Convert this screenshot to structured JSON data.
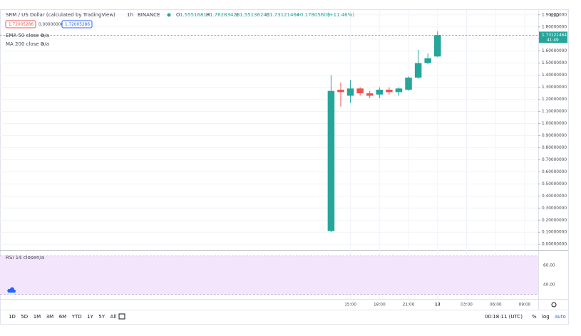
{
  "header": {
    "symbol": "SRM / US Dollar (calculated by TradingView)",
    "interval": "1h",
    "exchange": "BINANCE",
    "ohlc_labels": [
      "O",
      "H",
      "L",
      "C"
    ],
    "change": "+0.17805603",
    "change_pct": "(+11.46%)",
    "inputs": [
      "1.72005286",
      "0.00000000",
      "1.72005286"
    ],
    "indicators": [
      {
        "name": "EMA 50 close 0",
        "value": "n/a"
      },
      {
        "name": "MA 200 close 0",
        "value": "n/a"
      }
    ],
    "currency": "USD"
  },
  "chart_data": [
    {
      "type": "candlestick",
      "x": [
        13,
        14,
        15,
        16,
        17,
        18,
        19,
        20,
        21,
        22,
        23,
        24
      ],
      "open": [
        0.11,
        1.28,
        1.23,
        1.29,
        1.25,
        1.24,
        1.28,
        1.26,
        1.28,
        1.38,
        1.5,
        1.55516817
      ],
      "high": [
        1.4,
        1.34,
        1.36,
        1.3,
        1.27,
        1.3,
        1.3,
        1.3,
        1.39,
        1.61,
        1.58,
        1.76283428
      ],
      "low": [
        0.1,
        1.14,
        1.17,
        1.23,
        1.21,
        1.21,
        1.24,
        1.23,
        1.27,
        1.37,
        1.49,
        1.55136243
      ],
      "close": [
        1.27,
        1.26,
        1.29,
        1.25,
        1.23,
        1.28,
        1.26,
        1.29,
        1.38,
        1.5,
        1.54,
        1.73121464
      ],
      "up_color": "#26a69a",
      "down_color": "#ef5350",
      "xlim": [
        -21.2,
        34.4
      ],
      "xticks": [
        {
          "value": 15,
          "label": "15:00"
        },
        {
          "value": 18,
          "label": "18:00"
        },
        {
          "value": 21,
          "label": "21:00"
        },
        {
          "value": 24,
          "label": "13"
        },
        {
          "value": 27,
          "label": "03:00"
        },
        {
          "value": 30,
          "label": "06:00"
        },
        {
          "value": 33,
          "label": "09:00"
        }
      ],
      "ylim": [
        -0.04,
        1.94
      ],
      "yticks": [
        {
          "value": 1.9,
          "label": "1.90000000"
        },
        {
          "value": 1.8,
          "label": "1.80000000"
        },
        {
          "value": 1.7,
          "label": "1.70000000"
        },
        {
          "value": 1.6,
          "label": "1.60000000"
        },
        {
          "value": 1.5,
          "label": "1.50000000"
        },
        {
          "value": 1.4,
          "label": "1.40000000"
        },
        {
          "value": 1.3,
          "label": "1.30000000"
        },
        {
          "value": 1.2,
          "label": "1.20000000"
        },
        {
          "value": 1.1,
          "label": "1.10000000"
        },
        {
          "value": 1.0,
          "label": "1.00000000"
        },
        {
          "value": 0.9,
          "label": "0.90000000"
        },
        {
          "value": 0.8,
          "label": "0.80000000"
        },
        {
          "value": 0.7,
          "label": "0.70000000"
        },
        {
          "value": 0.6,
          "label": "0.60000000"
        },
        {
          "value": 0.5,
          "label": "0.50000000"
        },
        {
          "value": 0.4,
          "label": "0.40000000"
        },
        {
          "value": 0.3,
          "label": "0.30000000"
        },
        {
          "value": 0.2,
          "label": "0.20000000"
        },
        {
          "value": 0.1,
          "label": "0.10000000"
        },
        {
          "value": 0,
          "label": "0.00000000"
        }
      ],
      "grid": true,
      "countdown": "41:49"
    },
    {
      "type": "rsi",
      "name": "RSI 14 close",
      "value": "n/a",
      "ylim": [
        25.2,
        74.8
      ],
      "yticks": [
        {
          "value": 60,
          "label": "60.00"
        },
        {
          "value": 40,
          "label": "40.00"
        }
      ],
      "band": [
        30,
        70
      ],
      "band_color": "#f3e5fc"
    }
  ],
  "footer": {
    "ranges": [
      "1D",
      "5D",
      "1M",
      "3M",
      "6M",
      "YTD",
      "1Y",
      "5Y",
      "All"
    ],
    "clock": "00:18:11 (UTC)",
    "percent": "%",
    "log": "log",
    "auto": "auto"
  }
}
